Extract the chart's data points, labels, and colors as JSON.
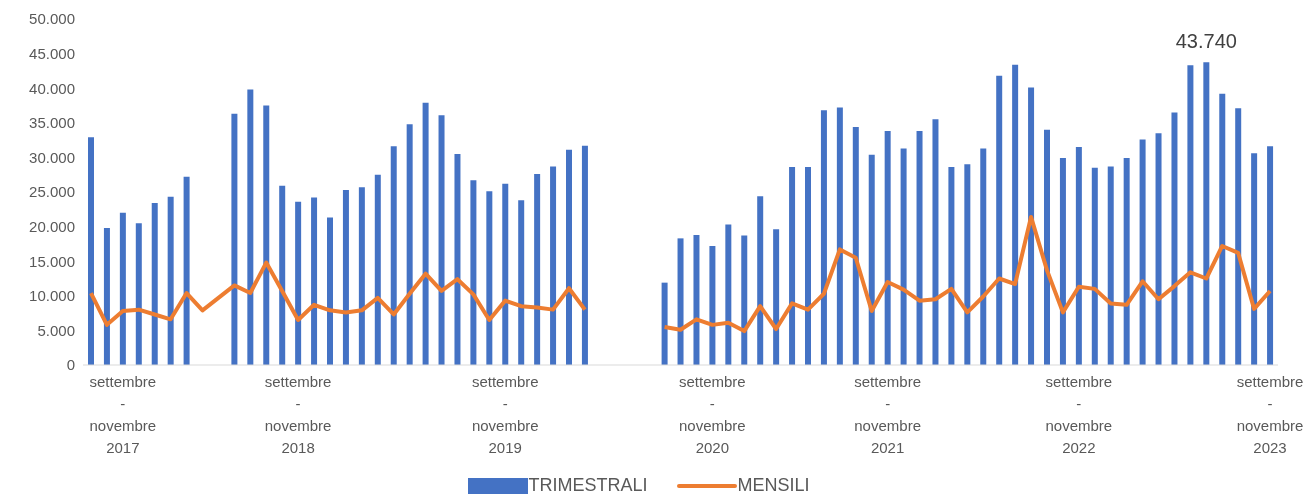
{
  "chart_data": {
    "type": "bar",
    "categories": [
      null,
      null,
      "settembre - novembre 2017",
      null,
      null,
      null,
      null,
      null,
      null,
      null,
      null,
      null,
      null,
      "settembre - novembre 2018",
      null,
      null,
      null,
      null,
      null,
      null,
      null,
      null,
      null,
      null,
      null,
      null,
      "settembre - novembre 2019",
      null,
      null,
      null,
      null,
      null,
      null,
      null,
      null,
      null,
      null,
      null,
      null,
      "settembre - novembre 2020",
      null,
      null,
      null,
      null,
      null,
      null,
      null,
      null,
      null,
      null,
      "settembre - novembre 2021",
      null,
      null,
      null,
      null,
      null,
      null,
      null,
      null,
      null,
      null,
      null,
      "settembre - novembre 2022",
      null,
      null,
      null,
      null,
      null,
      null,
      null,
      null,
      null,
      null,
      null,
      "settembre - novembre 2023"
    ],
    "series": [
      {
        "name": "TRIMESTRALI",
        "color": "#4472c4",
        "values": [
          32900,
          19800,
          22000,
          20500,
          23400,
          24300,
          27200,
          null,
          null,
          36300,
          39800,
          37500,
          25900,
          23600,
          24200,
          21300,
          25300,
          25700,
          27500,
          31600,
          34800,
          37900,
          36100,
          30500,
          26700,
          25100,
          26200,
          23800,
          27600,
          28700,
          31100,
          31700,
          null,
          null,
          null,
          null,
          11900,
          18300,
          18800,
          17200,
          20300,
          18700,
          24400,
          19600,
          28600,
          28600,
          36800,
          37200,
          34400,
          30400,
          33800,
          31300,
          33800,
          35500,
          28600,
          29000,
          31300,
          41800,
          43400,
          40100,
          34000,
          29900,
          31500,
          28500,
          28700,
          29900,
          32600,
          33500,
          36500,
          43300,
          43740,
          39200,
          37100,
          30600,
          31600
        ],
        "value_labels": [
          null,
          null,
          null,
          null,
          null,
          null,
          null,
          null,
          null,
          null,
          null,
          null,
          null,
          null,
          null,
          null,
          null,
          null,
          null,
          null,
          null,
          null,
          null,
          null,
          null,
          null,
          null,
          null,
          null,
          null,
          null,
          null,
          null,
          null,
          null,
          null,
          null,
          null,
          null,
          null,
          null,
          null,
          null,
          null,
          null,
          null,
          null,
          null,
          null,
          null,
          null,
          null,
          null,
          null,
          null,
          null,
          null,
          null,
          null,
          null,
          null,
          null,
          null,
          null,
          null,
          null,
          null,
          null,
          null,
          null,
          "43.740",
          null,
          null,
          null,
          null
        ]
      },
      {
        "name": "MENSILI",
        "type": "line",
        "color": "#ed7d31",
        "values": [
          10400,
          5800,
          7800,
          8000,
          7300,
          6600,
          10400,
          7900,
          9700,
          11500,
          10400,
          14800,
          10700,
          6500,
          8700,
          7900,
          7600,
          7900,
          9700,
          7300,
          10300,
          13200,
          10700,
          12400,
          10200,
          6500,
          9300,
          8500,
          8300,
          8000,
          11100,
          8000,
          null,
          null,
          null,
          null,
          5500,
          5100,
          6600,
          5800,
          6100,
          4900,
          8500,
          5200,
          8900,
          8000,
          10300,
          16700,
          15500,
          7800,
          12000,
          10900,
          9300,
          9500,
          11000,
          7600,
          9900,
          12500,
          11700,
          21400,
          13700,
          7600,
          11300,
          11000,
          8900,
          8700,
          12100,
          9500,
          11400,
          13400,
          12500,
          17200,
          16200,
          8100,
          10700
        ]
      }
    ],
    "ylim": [
      0,
      50000
    ],
    "yticks": [
      {
        "value": 0,
        "label": "0"
      },
      {
        "value": 5000,
        "label": "5.000"
      },
      {
        "value": 10000,
        "label": "10.000"
      },
      {
        "value": 15000,
        "label": "15.000"
      },
      {
        "value": 20000,
        "label": "20.000"
      },
      {
        "value": 25000,
        "label": "25.000"
      },
      {
        "value": 30000,
        "label": "30.000"
      },
      {
        "value": 35000,
        "label": "35.000"
      },
      {
        "value": 40000,
        "label": "40.000"
      },
      {
        "value": 45000,
        "label": "45.000"
      },
      {
        "value": 50000,
        "label": "50.000"
      }
    ],
    "grid": false,
    "legend": "bottom"
  }
}
